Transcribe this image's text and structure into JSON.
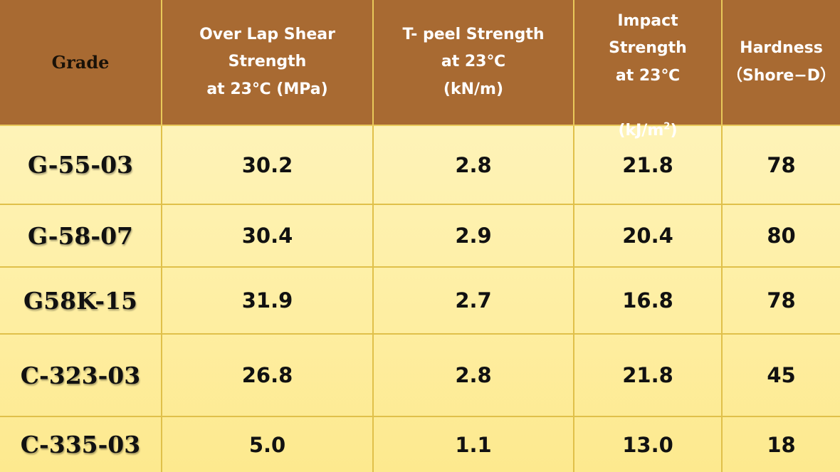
{
  "table": {
    "headers": [
      "Grade",
      "Over Lap Shear\nStrength\nat 23℃ (MPa)",
      "T- peel Strength\nat 23℃\n(kN/m)",
      "Impact\nStrength\nat 23℃",
      "Hardness\n（Shore−D）"
    ],
    "impact_unit_prefix": "(kJ/m",
    "impact_unit_sup": "2",
    "impact_unit_suffix": ")",
    "rows": [
      [
        "G-55-03",
        "30.2",
        "2.8",
        "21.8",
        "78"
      ],
      [
        "G-58-07",
        "30.4",
        "2.9",
        "20.4",
        "80"
      ],
      [
        "G58K-15",
        "31.9",
        "2.7",
        "16.8",
        "78"
      ],
      [
        "C-323-03",
        "26.8",
        "2.8",
        "21.8",
        "45"
      ],
      [
        "C-335-03",
        "5.0",
        "1.1",
        "13.0",
        "18"
      ]
    ]
  },
  "colors": {
    "header_bg": "#a86a32",
    "header_text": "#ffffff",
    "body_bg_top": "#fff6c6",
    "body_bg_bottom": "#fde98e",
    "grid_line": "#e0c04a"
  }
}
